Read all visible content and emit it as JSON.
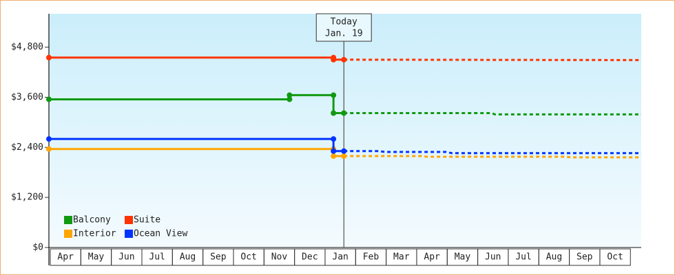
{
  "chart_data": {
    "type": "line",
    "annotation": {
      "x": 9.66,
      "lines": [
        "Today",
        "Jan. 19"
      ]
    },
    "xlim": [
      0,
      19.4
    ],
    "xticks": [
      {
        "value": 0.5,
        "label": "Apr"
      },
      {
        "value": 1.5,
        "label": "May"
      },
      {
        "value": 2.5,
        "label": "Jun"
      },
      {
        "value": 3.5,
        "label": "Jul"
      },
      {
        "value": 4.5,
        "label": "Aug"
      },
      {
        "value": 5.5,
        "label": "Sep"
      },
      {
        "value": 6.5,
        "label": "Oct"
      },
      {
        "value": 7.5,
        "label": "Nov"
      },
      {
        "value": 8.5,
        "label": "Dec"
      },
      {
        "value": 9.5,
        "label": "Jan"
      },
      {
        "value": 10.5,
        "label": "Feb"
      },
      {
        "value": 11.5,
        "label": "Mar"
      },
      {
        "value": 12.5,
        "label": "Apr"
      },
      {
        "value": 13.5,
        "label": "May"
      },
      {
        "value": 14.5,
        "label": "Jun"
      },
      {
        "value": 15.5,
        "label": "Jul"
      },
      {
        "value": 16.5,
        "label": "Aug"
      },
      {
        "value": 17.5,
        "label": "Sep"
      },
      {
        "value": 18.5,
        "label": "Oct"
      }
    ],
    "ylim": [
      0,
      5600
    ],
    "yticks": [
      {
        "value": 0,
        "label": "$0"
      },
      {
        "value": 1200,
        "label": "$1,200"
      },
      {
        "value": 2400,
        "label": "$2,400"
      },
      {
        "value": 3600,
        "label": "$3,600"
      },
      {
        "value": 4800,
        "label": "$4,800"
      }
    ],
    "series": [
      {
        "name": "Balcony",
        "color": "#119911",
        "x": [
          0,
          7.88,
          7.88,
          9.32,
          9.32,
          9.66
        ],
        "values": [
          3550,
          3550,
          3650,
          3650,
          3220,
          3220
        ],
        "forecast_x": [
          9.66,
          14.5,
          14.6,
          19.4
        ],
        "forecast": [
          3220,
          3220,
          3190,
          3190
        ]
      },
      {
        "name": "Suite",
        "color": "#ff3300",
        "x": [
          0,
          9.32,
          9.32,
          9.66
        ],
        "values": [
          4550,
          4550,
          4500,
          4500
        ],
        "forecast_x": [
          9.66,
          19.4
        ],
        "forecast": [
          4500,
          4490
        ]
      },
      {
        "name": "Interior",
        "color": "#ffa500",
        "x": [
          0,
          9.32,
          9.32,
          9.66
        ],
        "values": [
          2360,
          2360,
          2190,
          2190
        ],
        "forecast_x": [
          9.66,
          12.2,
          12.4,
          16.9,
          17.1,
          19.4
        ],
        "forecast": [
          2190,
          2190,
          2175,
          2175,
          2160,
          2160
        ]
      },
      {
        "name": "Ocean View",
        "color": "#0033ff",
        "x": [
          0,
          9.32,
          9.32,
          9.66
        ],
        "values": [
          2600,
          2600,
          2310,
          2310
        ],
        "forecast_x": [
          9.66,
          10.8,
          11.0,
          13.0,
          13.2,
          19.4
        ],
        "forecast": [
          2310,
          2310,
          2290,
          2290,
          2260,
          2260
        ]
      }
    ]
  }
}
